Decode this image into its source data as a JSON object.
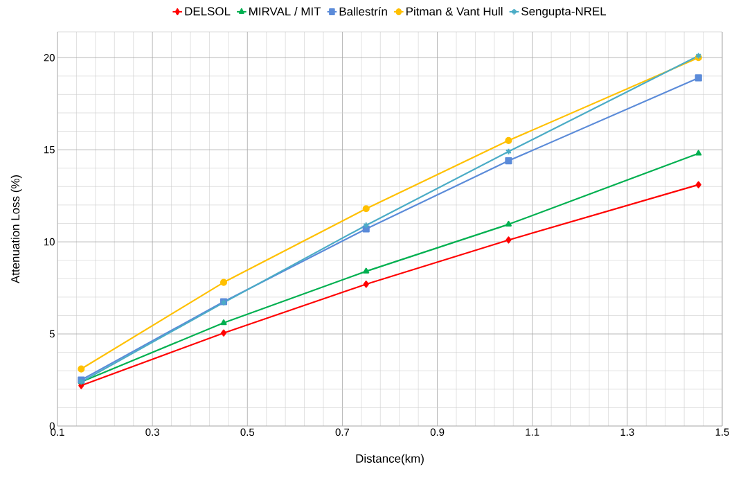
{
  "chart_data": {
    "type": "line",
    "xlabel": "Distance(km)",
    "ylabel": "Attenuation Loss (%)",
    "x": [
      0.15,
      0.45,
      0.75,
      1.05,
      1.45
    ],
    "series": [
      {
        "name": "DELSOL",
        "color": "#ff0000",
        "marker": "diamond",
        "values": [
          2.2,
          5.05,
          7.7,
          10.1,
          13.1
        ]
      },
      {
        "name": "MIRVAL / MIT",
        "color": "#00b050",
        "marker": "triangle",
        "values": [
          2.4,
          5.6,
          8.4,
          10.95,
          14.8
        ]
      },
      {
        "name": "Ballestrín",
        "color": "#5b8bd9",
        "marker": "square",
        "values": [
          2.5,
          6.75,
          10.7,
          14.4,
          18.9
        ]
      },
      {
        "name": "Pitman & Vant Hull",
        "color": "#ffc000",
        "marker": "circle",
        "values": [
          3.1,
          7.8,
          11.8,
          15.5,
          20.0
        ]
      },
      {
        "name": "Sengupta-NREL",
        "color": "#4bacc6",
        "marker": "cross",
        "values": [
          2.4,
          6.7,
          10.9,
          14.9,
          20.1
        ]
      }
    ],
    "xlim": [
      0.1,
      1.5
    ],
    "xticks": [
      0.1,
      0.3,
      0.5,
      0.7,
      0.9,
      1.1,
      1.3,
      1.5
    ],
    "ylim": [
      0,
      21.4
    ],
    "yticks": [
      0,
      5,
      10,
      15,
      20
    ],
    "grid": true,
    "legend": "top",
    "line_style": "solid"
  }
}
